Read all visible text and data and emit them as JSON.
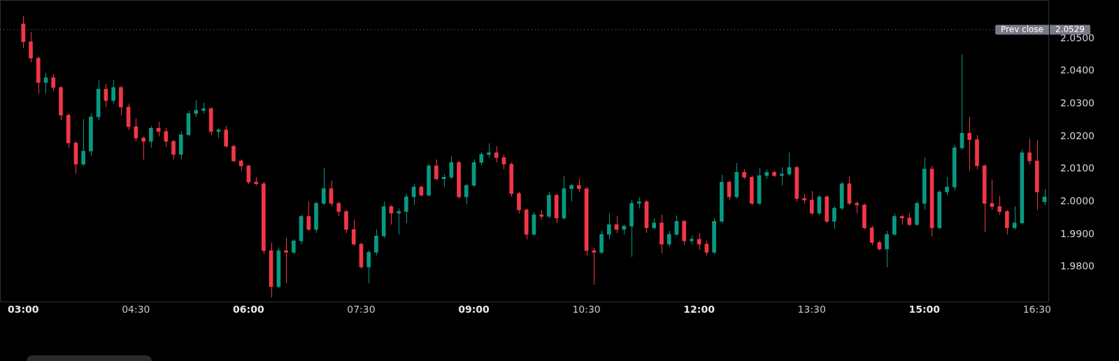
{
  "chart_data": {
    "type": "candlestick",
    "x": [
      3,
      3.1,
      3.2,
      3.3,
      3.4,
      3.5,
      3.6,
      3.7,
      3.8,
      3.9,
      4,
      4.1,
      4.2,
      4.3,
      4.4,
      4.5,
      4.6,
      4.7,
      4.8,
      4.9,
      5,
      5.1,
      5.2,
      5.3,
      5.4,
      5.5,
      5.6,
      5.7,
      5.8,
      5.9,
      6,
      6.1,
      6.2,
      6.3,
      6.4,
      6.5,
      6.6,
      6.7,
      6.8,
      6.9,
      7,
      7.1,
      7.2,
      7.3,
      7.4,
      7.5,
      7.6,
      7.7,
      7.8,
      7.9,
      8,
      8.1,
      8.2,
      8.3,
      8.4,
      8.5,
      8.6,
      8.7,
      8.8,
      8.9,
      9,
      9.1,
      9.2,
      9.3,
      9.4,
      9.5,
      9.6,
      9.7,
      9.8,
      9.9,
      10,
      10.1,
      10.2,
      10.3,
      10.4,
      10.5,
      10.6,
      10.7,
      10.8,
      10.9,
      11,
      11.1,
      11.2,
      11.3,
      11.4,
      11.5,
      11.6,
      11.7,
      11.8,
      11.9,
      12,
      12.1,
      12.2,
      12.3,
      12.4,
      12.5,
      12.6,
      12.7,
      12.8,
      12.9,
      13,
      13.1,
      13.2,
      13.3,
      13.4,
      13.5,
      13.6,
      13.7,
      13.8,
      13.9,
      14,
      14.1,
      14.2,
      14.3,
      14.4,
      14.5,
      14.6,
      14.7,
      14.8,
      14.9,
      15,
      15.1,
      15.2,
      15.3,
      15.4,
      15.5,
      15.6,
      15.7,
      15.8,
      15.9,
      16,
      16.1,
      16.2,
      16.3,
      16.4,
      16.5,
      16.6
    ],
    "ohlc": [
      [
        2.0545,
        2.0569,
        2.047,
        2.049
      ],
      [
        2.049,
        2.052,
        2.0427,
        2.044
      ],
      [
        2.044,
        2.0445,
        2.033,
        2.0365
      ],
      [
        2.0365,
        2.0395,
        2.033,
        2.038
      ],
      [
        2.038,
        2.039,
        2.034,
        2.035
      ],
      [
        2.035,
        2.0355,
        2.025,
        2.0265
      ],
      [
        2.0265,
        2.027,
        2.0165,
        2.018
      ],
      [
        2.018,
        2.0185,
        2.0086,
        2.0115
      ],
      [
        2.0115,
        2.0254,
        2.011,
        2.0155
      ],
      [
        2.0155,
        2.027,
        2.014,
        2.026
      ],
      [
        2.026,
        2.0371,
        2.025,
        2.0345
      ],
      [
        2.0345,
        2.036,
        2.029,
        2.031
      ],
      [
        2.031,
        2.0374,
        2.03,
        2.035
      ],
      [
        2.035,
        2.0355,
        2.0265,
        2.029
      ],
      [
        2.029,
        2.03,
        2.022,
        2.023
      ],
      [
        2.023,
        2.0255,
        2.0185,
        2.0195
      ],
      [
        2.0195,
        2.02,
        2.013,
        2.0185
      ],
      [
        2.0185,
        2.0232,
        2.0165,
        2.0225
      ],
      [
        2.0225,
        2.0245,
        2.02,
        2.0215
      ],
      [
        2.0215,
        2.0225,
        2.0168,
        2.0185
      ],
      [
        2.0185,
        2.019,
        2.013,
        2.0145
      ],
      [
        2.0145,
        2.0215,
        2.013,
        2.0205
      ],
      [
        2.0205,
        2.028,
        2.02,
        2.027
      ],
      [
        2.027,
        2.0311,
        2.026,
        2.028
      ],
      [
        2.028,
        2.0303,
        2.027,
        2.0285
      ],
      [
        2.0285,
        2.029,
        2.0205,
        2.0215
      ],
      [
        2.0215,
        2.0225,
        2.0195,
        2.022
      ],
      [
        2.022,
        2.0232,
        2.0165,
        2.017
      ],
      [
        2.017,
        2.0175,
        2.012,
        2.0125
      ],
      [
        2.0125,
        2.013,
        2.0095,
        2.011
      ],
      [
        2.011,
        2.0112,
        2.0055,
        2.006
      ],
      [
        2.006,
        2.0075,
        2.005,
        2.0055
      ],
      [
        2.0055,
        2.006,
        1.984,
        1.985
      ],
      [
        1.985,
        1.9875,
        1.9707,
        1.974
      ],
      [
        1.974,
        1.986,
        1.9735,
        1.985
      ],
      [
        1.985,
        1.989,
        1.975,
        1.9845
      ],
      [
        1.9845,
        1.9885,
        1.984,
        1.988
      ],
      [
        1.988,
        1.996,
        1.987,
        1.9955
      ],
      [
        1.9955,
        2,
        1.991,
        1.9915
      ],
      [
        1.9915,
        2,
        1.9905,
        1.9995
      ],
      [
        1.9995,
        2.0103,
        1.999,
        2.004
      ],
      [
        2.004,
        2.0065,
        1.9985,
        1.9995
      ],
      [
        1.9995,
        2,
        1.9955,
        1.997
      ],
      [
        1.997,
        1.9975,
        1.9905,
        1.9915
      ],
      [
        1.9915,
        1.9945,
        1.9865,
        1.987
      ],
      [
        1.987,
        1.9875,
        1.9795,
        1.98
      ],
      [
        1.98,
        1.985,
        1.975,
        1.9845
      ],
      [
        1.9845,
        1.9915,
        1.9835,
        1.9895
      ],
      [
        1.9895,
        2,
        1.989,
        1.9985
      ],
      [
        1.9985,
        1.999,
        1.993,
        1.9965
      ],
      [
        1.9965,
        1.998,
        1.99,
        1.997
      ],
      [
        1.997,
        2.0025,
        1.9935,
        2.0015
      ],
      [
        2.0015,
        2.0054,
        1.999,
        2.0045
      ],
      [
        2.0045,
        2.005,
        2.0015,
        2.002
      ],
      [
        2.002,
        2.0115,
        2.0015,
        2.011
      ],
      [
        2.011,
        2.013,
        2.0065,
        2.007
      ],
      [
        2.007,
        2.0085,
        2.0045,
        2.0075
      ],
      [
        2.0075,
        2.014,
        2.007,
        2.012
      ],
      [
        2.012,
        2.0125,
        2.001,
        2.0015
      ],
      [
        2.0015,
        2.0055,
        1.9992,
        2.005
      ],
      [
        2.005,
        2.013,
        2.0045,
        2.012
      ],
      [
        2.012,
        2.015,
        2.011,
        2.0145
      ],
      [
        2.0145,
        2.0178,
        2.0135,
        2.015
      ],
      [
        2.015,
        2.017,
        2.012,
        2.0135
      ],
      [
        2.0135,
        2.0145,
        2.01,
        2.0115
      ],
      [
        2.0115,
        2.012,
        2.0015,
        2.0025
      ],
      [
        2.0025,
        2.003,
        1.9965,
        1.9975
      ],
      [
        1.9975,
        1.998,
        1.9885,
        1.99
      ],
      [
        1.99,
        1.9968,
        1.9895,
        1.996
      ],
      [
        1.996,
        1.9975,
        1.9945,
        1.9955
      ],
      [
        1.9955,
        2.003,
        1.995,
        2.002
      ],
      [
        2.002,
        2.0025,
        1.9935,
        1.995
      ],
      [
        1.995,
        2.0078,
        1.9945,
        2.004
      ],
      [
        2.004,
        2.0055,
        2,
        2.005
      ],
      [
        2.005,
        2.0072,
        2.003,
        2.004
      ],
      [
        2.004,
        2.0045,
        1.9835,
        1.985
      ],
      [
        1.985,
        1.986,
        1.9746,
        1.9845
      ],
      [
        1.9845,
        1.991,
        1.984,
        1.99
      ],
      [
        1.99,
        1.9965,
        1.9885,
        1.993
      ],
      [
        1.993,
        1.9955,
        1.9905,
        1.9915
      ],
      [
        1.9915,
        1.993,
        1.99,
        1.9925
      ],
      [
        1.9925,
        2.0005,
        1.9832,
        1.9995
      ],
      [
        1.9995,
        2.0013,
        1.998,
        2
      ],
      [
        2,
        2.0005,
        1.9905,
        1.992
      ],
      [
        1.992,
        1.995,
        1.9915,
        1.9935
      ],
      [
        1.9935,
        1.996,
        1.9842,
        1.987
      ],
      [
        1.987,
        1.991,
        1.9861,
        1.99
      ],
      [
        1.99,
        1.9958,
        1.9895,
        1.994
      ],
      [
        1.994,
        1.9945,
        1.9868,
        1.988
      ],
      [
        1.988,
        1.9895,
        1.987,
        1.9885
      ],
      [
        1.9885,
        1.9905,
        1.9853,
        1.987
      ],
      [
        1.987,
        1.988,
        1.9836,
        1.9845
      ],
      [
        1.9845,
        1.995,
        1.984,
        1.994
      ],
      [
        1.994,
        2.0082,
        1.9935,
        2.006
      ],
      [
        2.006,
        2.0065,
        2.0005,
        2.0015
      ],
      [
        2.0015,
        2.0118,
        2.001,
        2.009
      ],
      [
        2.009,
        2.01,
        2.007,
        2.0075
      ],
      [
        2.0075,
        2.008,
        1.999,
        1.9995
      ],
      [
        1.9995,
        2.0103,
        1.999,
        2.008
      ],
      [
        2.008,
        2.01,
        2.007,
        2.009
      ],
      [
        2.009,
        2.0095,
        2.0075,
        2.008
      ],
      [
        2.008,
        2.0105,
        2.005,
        2.0085
      ],
      [
        2.0085,
        2.015,
        2.008,
        2.0105
      ],
      [
        2.0105,
        2.011,
        2,
        2.001
      ],
      [
        2.001,
        2.0025,
        1.9995,
        2.0005
      ],
      [
        2.0005,
        2.0033,
        1.996,
        1.9965
      ],
      [
        1.9965,
        2.002,
        1.996,
        2.0015
      ],
      [
        2.0015,
        2.002,
        1.9935,
        1.994
      ],
      [
        1.994,
        1.9985,
        1.9918,
        1.998
      ],
      [
        1.998,
        2.006,
        1.9975,
        2.0055
      ],
      [
        2.0055,
        2.0078,
        1.999,
        1.9995
      ],
      [
        1.9995,
        2,
        1.9965,
        1.999
      ],
      [
        1.999,
        1.9995,
        1.9915,
        1.992
      ],
      [
        1.992,
        1.9925,
        1.9865,
        1.9875
      ],
      [
        1.9875,
        1.988,
        1.985,
        1.9855
      ],
      [
        1.9855,
        1.991,
        1.9799,
        1.99
      ],
      [
        1.99,
        1.9965,
        1.9895,
        1.9955
      ],
      [
        1.9955,
        1.996,
        1.993,
        1.995
      ],
      [
        1.995,
        1.9965,
        1.9925,
        1.993
      ],
      [
        1.993,
        2,
        1.9925,
        1.9995
      ],
      [
        1.9995,
        2.0136,
        1.9975,
        2.01
      ],
      [
        2.01,
        2.011,
        1.9894,
        1.992
      ],
      [
        1.992,
        2.0035,
        1.9915,
        2.003
      ],
      [
        2.003,
        2.0075,
        2.002,
        2.0045
      ],
      [
        2.0045,
        2.0175,
        2.0035,
        2.0165
      ],
      [
        2.0165,
        2.045,
        2.016,
        2.021
      ],
      [
        2.021,
        2.026,
        2.0095,
        2.019
      ],
      [
        2.019,
        2.0205,
        2.01,
        2.011
      ],
      [
        2.011,
        2.0115,
        1.9907,
        1.9995
      ],
      [
        1.9995,
        2.0068,
        1.9975,
        1.9985
      ],
      [
        1.9985,
        2.0018,
        1.996,
        1.997
      ],
      [
        1.997,
        1.9975,
        1.99,
        1.992
      ],
      [
        1.992,
        1.9985,
        1.9915,
        1.9935
      ],
      [
        1.9935,
        2.016,
        1.993,
        2.015
      ],
      [
        2.015,
        2.0193,
        2.0115,
        2.0125
      ],
      [
        2.0125,
        2.019,
        1.9975,
        2.003
      ],
      [
        2,
        2.004,
        1.999,
        2.0015
      ]
    ],
    "colors": [
      "#f23645",
      "#f23645",
      "#f23645",
      "#089981",
      "#f23645",
      "#f23645",
      "#f23645",
      "#f23645",
      "#089981",
      "#089981",
      "#089981",
      "#f23645",
      "#089981",
      "#f23645",
      "#f23645",
      "#f23645",
      "#f23645",
      "#089981",
      "#f23645",
      "#f23645",
      "#f23645",
      "#089981",
      "#089981",
      "#089981",
      "#089981",
      "#f23645",
      "#089981",
      "#f23645",
      "#f23645",
      "#f23645",
      "#f23645",
      "#f23645",
      "#f23645",
      "#f23645",
      "#089981",
      "#f23645",
      "#089981",
      "#089981",
      "#f23645",
      "#089981",
      "#089981",
      "#f23645",
      "#f23645",
      "#f23645",
      "#f23645",
      "#f23645",
      "#089981",
      "#089981",
      "#089981",
      "#f23645",
      "#089981",
      "#089981",
      "#089981",
      "#f23645",
      "#089981",
      "#f23645",
      "#089981",
      "#089981",
      "#f23645",
      "#089981",
      "#089981",
      "#089981",
      "#089981",
      "#f23645",
      "#f23645",
      "#f23645",
      "#f23645",
      "#f23645",
      "#089981",
      "#f23645",
      "#089981",
      "#f23645",
      "#089981",
      "#089981",
      "#f23645",
      "#f23645",
      "#f23645",
      "#089981",
      "#089981",
      "#f23645",
      "#089981",
      "#089981",
      "#089981",
      "#f23645",
      "#089981",
      "#f23645",
      "#089981",
      "#089981",
      "#f23645",
      "#089981",
      "#f23645",
      "#f23645",
      "#089981",
      "#089981",
      "#f23645",
      "#089981",
      "#f23645",
      "#f23645",
      "#089981",
      "#089981",
      "#f23645",
      "#089981",
      "#089981",
      "#f23645",
      "#f23645",
      "#f23645",
      "#089981",
      "#f23645",
      "#089981",
      "#089981",
      "#f23645",
      "#f23645",
      "#f23645",
      "#f23645",
      "#f23645",
      "#089981",
      "#089981",
      "#f23645",
      "#f23645",
      "#089981",
      "#089981",
      "#f23645",
      "#089981",
      "#089981",
      "#089981",
      "#089981",
      "#f23645",
      "#f23645",
      "#f23645",
      "#f23645",
      "#f23645",
      "#f23645",
      "#089981",
      "#089981",
      "#f23645",
      "#f23645",
      "#089981"
    ],
    "xlim": [
      2.69,
      16.66
    ],
    "ylim": [
      1.9692,
      2.0618
    ],
    "xticks": [
      {
        "value": 3,
        "label": "03:00"
      },
      {
        "value": 4.5,
        "label": "04:30"
      },
      {
        "value": 6,
        "label": "06:00"
      },
      {
        "value": 7.5,
        "label": "07:30"
      },
      {
        "value": 9,
        "label": "09:00"
      },
      {
        "value": 10.5,
        "label": "10:30"
      },
      {
        "value": 12,
        "label": "12:00"
      },
      {
        "value": 13.5,
        "label": "13:30"
      },
      {
        "value": 15,
        "label": "15:00"
      },
      {
        "value": 16.5,
        "label": "16:30"
      }
    ],
    "yticks": [
      {
        "value": 1.98,
        "label": "1.9800"
      },
      {
        "value": 1.99,
        "label": "1.9900"
      },
      {
        "value": 2,
        "label": "2.0000"
      },
      {
        "value": 2.01,
        "label": "2.0100"
      },
      {
        "value": 2.02,
        "label": "2.0200"
      },
      {
        "value": 2.03,
        "label": "2.0300"
      },
      {
        "value": 2.04,
        "label": "2.0400"
      },
      {
        "value": 2.05,
        "label": "2.0500"
      }
    ],
    "ref_lines": [
      {
        "axis": "y",
        "value": 2.0529,
        "label": "Prev close",
        "color": "#787b86",
        "line_style": "dotted"
      }
    ],
    "annotations": [
      "2.0529"
    ]
  }
}
